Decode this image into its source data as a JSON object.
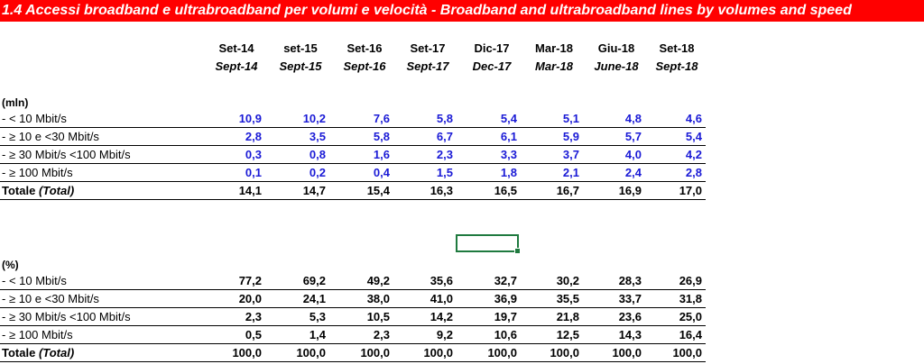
{
  "title": "1.4 Accessi broadband e ultrabroadband  per volumi e velocità - Broadband and ultrabroadband lines by volumes and speed",
  "columns": [
    {
      "it": "Set-14",
      "en": "Sept-14"
    },
    {
      "it": "set-15",
      "en": "Sept-15"
    },
    {
      "it": "Set-16",
      "en": "Sept-16"
    },
    {
      "it": "Set-17",
      "en": "Sept-17"
    },
    {
      "it": "Dic-17",
      "en": "Dec-17"
    },
    {
      "it": "Mar-18",
      "en": "Mar-18"
    },
    {
      "it": "Giu-18",
      "en": "June-18"
    },
    {
      "it": "Set-18",
      "en": "Sept-18"
    }
  ],
  "volumes": {
    "unit": "(mln)",
    "rows": [
      {
        "label": " - < 10 Mbit/s",
        "values": [
          "10,9",
          "10,2",
          "7,6",
          "5,8",
          "5,4",
          "5,1",
          "4,8",
          "4,6"
        ]
      },
      {
        "label": " - ≥ 10 e <30 Mbit/s",
        "values": [
          "2,8",
          "3,5",
          "5,8",
          "6,7",
          "6,1",
          "5,9",
          "5,7",
          "5,4"
        ]
      },
      {
        "label": " -  ≥ 30 Mbit/s <100 Mbit/s",
        "values": [
          "0,3",
          "0,8",
          "1,6",
          "2,3",
          "3,3",
          "3,7",
          "4,0",
          "4,2"
        ]
      },
      {
        "label": " -  ≥ 100 Mbit/s",
        "values": [
          "0,1",
          "0,2",
          "0,4",
          "1,5",
          "1,8",
          "2,1",
          "2,4",
          "2,8"
        ]
      }
    ],
    "total": {
      "label": "Totale ",
      "label_en": "(Total)",
      "values": [
        "14,1",
        "14,7",
        "15,4",
        "16,3",
        "16,5",
        "16,7",
        "16,9",
        "17,0"
      ]
    }
  },
  "percent": {
    "unit": "(%)",
    "rows": [
      {
        "label": " - < 10 Mbit/s",
        "values": [
          "77,2",
          "69,2",
          "49,2",
          "35,6",
          "32,7",
          "30,2",
          "28,3",
          "26,9"
        ]
      },
      {
        "label": " - ≥ 10 e <30 Mbit/s",
        "values": [
          "20,0",
          "24,1",
          "38,0",
          "41,0",
          "36,9",
          "35,5",
          "33,7",
          "31,8"
        ]
      },
      {
        "label": " -  ≥ 30 Mbit/s <100 Mbit/s",
        "values": [
          "2,3",
          "5,3",
          "10,5",
          "14,2",
          "19,7",
          "21,8",
          "23,6",
          "25,0"
        ]
      },
      {
        "label": " -  ≥ 100 Mbit/s",
        "values": [
          "0,5",
          "1,4",
          "2,3",
          "9,2",
          "10,6",
          "12,5",
          "14,3",
          "16,4"
        ]
      }
    ],
    "total": {
      "label": "Totale ",
      "label_en": "(Total)",
      "values": [
        "100,0",
        "100,0",
        "100,0",
        "100,0",
        "100,0",
        "100,0",
        "100,0",
        "100,0"
      ]
    }
  }
}
